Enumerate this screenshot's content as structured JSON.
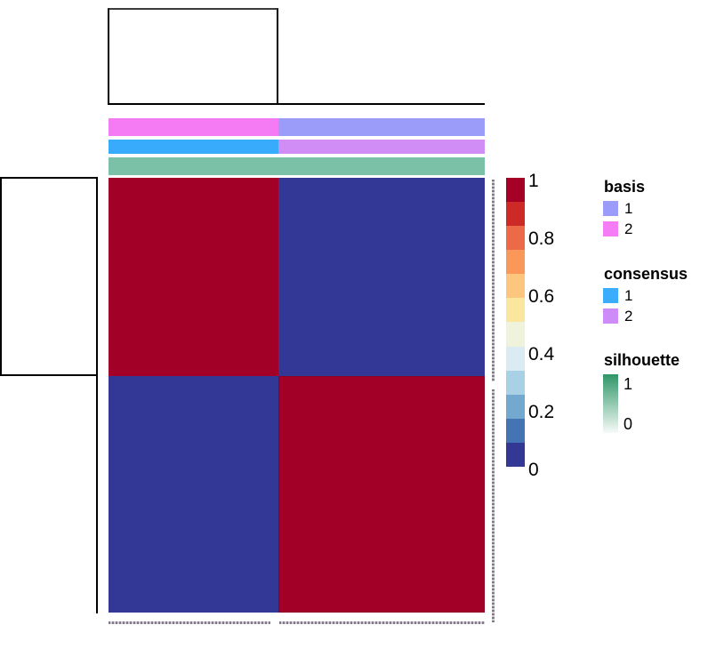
{
  "chart_data": {
    "type": "heatmap",
    "title": "",
    "description": "NMF consensus map, 2 clusters: top and left dendrograms, column annotation tracks (basis, consensus, silhouette), 2x2 block consensus matrix, vertical color key from 0 to 1, legends for basis, consensus and silhouette",
    "matrix": {
      "values": [
        [
          1,
          0
        ],
        [
          0,
          1
        ]
      ],
      "high_value": 1,
      "low_value": 0,
      "high_color": "#A30027",
      "low_color": "#333795"
    },
    "tracks": {
      "basis": {
        "name": "basis",
        "left": {
          "value": "2",
          "color": "#F57BF5"
        },
        "right": {
          "value": "1",
          "color": "#9B9BFA"
        }
      },
      "consensus": {
        "name": "consensus",
        "left": {
          "value": "1",
          "color": "#39ABFC"
        },
        "right": {
          "value": "2",
          "color": "#D18DF6"
        }
      },
      "silhouette": {
        "name": "silhouette",
        "full": {
          "color": "#7BC1A7"
        }
      }
    },
    "colorbar": {
      "orientation": "vertical",
      "domain": [
        0,
        1
      ],
      "tick_labels": [
        "1",
        "0.8",
        "0.6",
        "0.4",
        "0.2",
        "0"
      ],
      "colors_top_to_bottom": [
        "#A50026",
        "#CD2A27",
        "#EC6A48",
        "#F99858",
        "#FCC67E",
        "#FAE69C",
        "#EFF3DC",
        "#DAEBF3",
        "#A9D1E5",
        "#73A8CF",
        "#4574B4",
        "#333895"
      ]
    },
    "legends": {
      "basis": {
        "title": "basis",
        "items": [
          {
            "label": "1",
            "color": "#9B9BFA"
          },
          {
            "label": "2",
            "color": "#F67CF6"
          }
        ]
      },
      "consensus": {
        "title": "consensus",
        "items": [
          {
            "label": "1",
            "color": "#3CACFC"
          },
          {
            "label": "2",
            "color": "#CE8CF8"
          }
        ]
      },
      "silhouette": {
        "title": "silhouette",
        "top_label": "1",
        "bottom_label": "0",
        "gradient_top": "#2E9668",
        "gradient_bottom": "#F7FAF8"
      }
    }
  }
}
